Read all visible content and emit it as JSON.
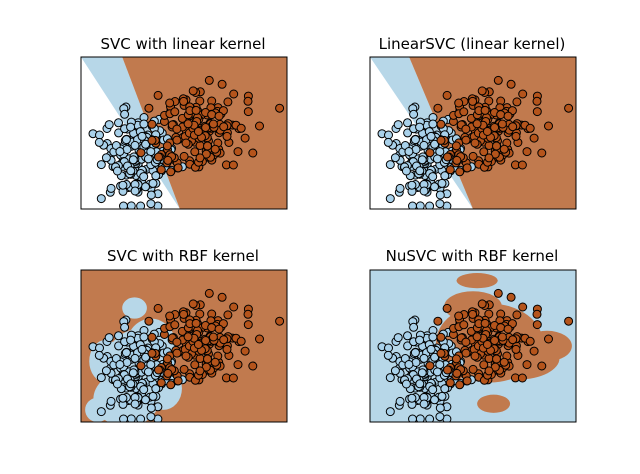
{
  "colors": {
    "class_a_region": "#b7d7e8",
    "class_b_region": "#c17a4e",
    "class_a_point": "#a9d1ea",
    "class_b_point": "#b5541b",
    "point_edge": "#000000"
  },
  "chart_data": [
    {
      "type": "scatter",
      "title": "SVC with linear kernel",
      "boundary": "linear",
      "xlim": [
        0,
        1
      ],
      "ylim": [
        0,
        1
      ],
      "grid": false,
      "regions": [
        {
          "class": "a",
          "polygon": [
            [
              0,
              1
            ],
            [
              0.2,
              1
            ],
            [
              0.48,
              0
            ]
          ]
        },
        {
          "class": "b",
          "polygon": [
            [
              0.2,
              1
            ],
            [
              1,
              1
            ],
            [
              1,
              0
            ],
            [
              0.48,
              0
            ]
          ]
        }
      ]
    },
    {
      "type": "scatter",
      "title": "LinearSVC (linear kernel)",
      "boundary": "linear",
      "xlim": [
        0,
        1
      ],
      "ylim": [
        0,
        1
      ],
      "grid": false,
      "regions": [
        {
          "class": "a",
          "polygon": [
            [
              0,
              1
            ],
            [
              0.19,
              1
            ],
            [
              0.5,
              0
            ]
          ]
        },
        {
          "class": "b",
          "polygon": [
            [
              0.19,
              1
            ],
            [
              1,
              1
            ],
            [
              1,
              0
            ],
            [
              0.5,
              0
            ]
          ]
        }
      ]
    },
    {
      "type": "scatter",
      "title": "SVC with RBF kernel",
      "boundary": "rbf",
      "xlim": [
        0,
        1
      ],
      "ylim": [
        0,
        1
      ],
      "grid": false
    },
    {
      "type": "scatter",
      "title": "NuSVC with RBF kernel",
      "boundary": "nu-rbf",
      "xlim": [
        0,
        1
      ],
      "ylim": [
        0,
        1
      ],
      "grid": false
    }
  ]
}
